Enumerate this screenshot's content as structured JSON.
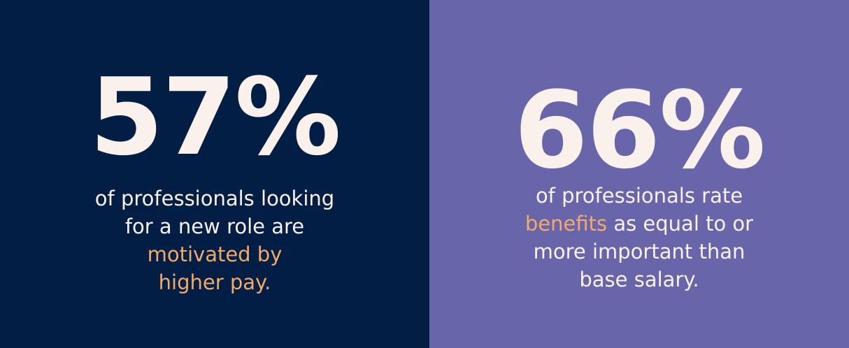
{
  "colors": {
    "left_background": "#021E44",
    "right_background": "#6965AB",
    "text": "#FBF1EC",
    "highlight": "#F2A96A"
  },
  "left": {
    "stat": "57%",
    "line1": "of professionals looking",
    "line2": "for a new role are",
    "highlight1": "motivated by",
    "highlight2": "higher pay."
  },
  "right": {
    "stat": "66%",
    "line1": "of professionals rate",
    "highlight": "benefits",
    "line2_rest": " as equal to or",
    "line3": "more important than",
    "line4": "base salary."
  }
}
